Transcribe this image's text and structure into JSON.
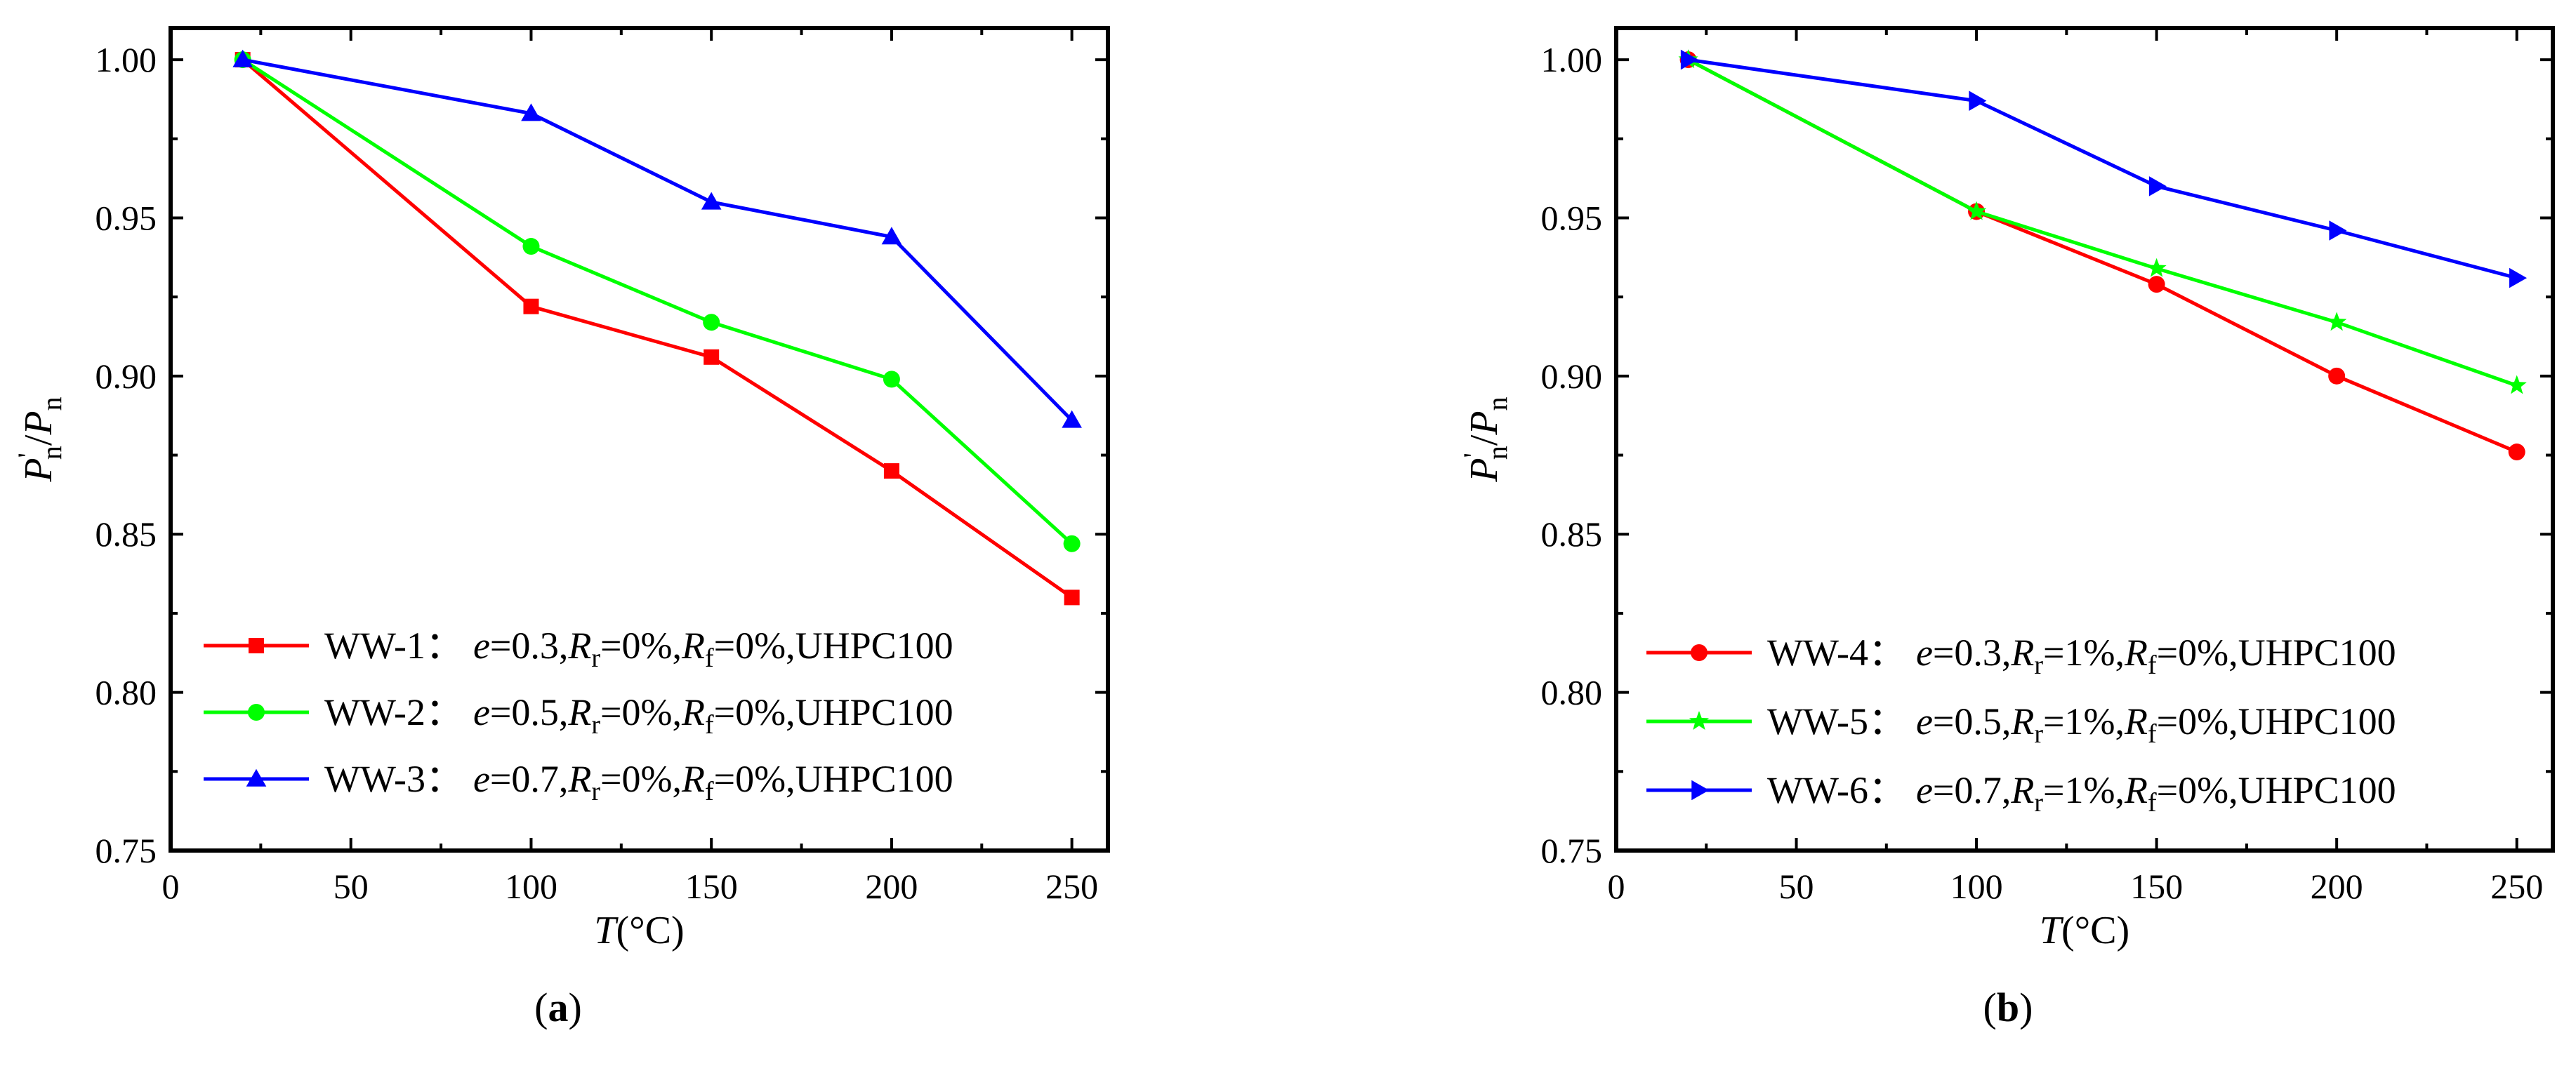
{
  "figure": {
    "panels": [
      "(a)",
      "(b)"
    ]
  },
  "chart_data": [
    {
      "type": "line",
      "panel_label": {
        "open": "(",
        "letter": "a",
        "close": ")"
      },
      "xlabel": {
        "var": "T",
        "unit": "(°C)"
      },
      "ylabel": {
        "main": "P",
        "prime": "'",
        "sub": "n",
        "slash": "/",
        "main2": "P",
        "sub2": "n"
      },
      "xlim": [
        0,
        260
      ],
      "ylim": [
        0.75,
        1.01
      ],
      "xticks": [
        0,
        50,
        100,
        150,
        200,
        250
      ],
      "xtick_labels": [
        "0",
        "50",
        "100",
        "150",
        "200",
        "250"
      ],
      "yticks": [
        0.75,
        0.8,
        0.85,
        0.9,
        0.95,
        1.0
      ],
      "ytick_labels": [
        "0.75",
        "0.80",
        "0.85",
        "0.90",
        "0.95",
        "1.00"
      ],
      "legend_position": "bottom-left",
      "x": [
        20,
        100,
        150,
        200,
        250
      ],
      "series": [
        {
          "name": "WW-1",
          "color": "#ff0000",
          "marker": "square",
          "values": [
            1.0,
            0.922,
            0.906,
            0.87,
            0.83
          ],
          "legend": {
            "name": "WW-1：",
            "e": "e",
            "e_val": "=0.3,",
            "rr": "R",
            "rr_sub": "r",
            "rr_val": "=0%,",
            "rf": "R",
            "rf_sub": "f",
            "rf_val": "=0%,UHPC100"
          }
        },
        {
          "name": "WW-2",
          "color": "#00ff00",
          "marker": "circle",
          "values": [
            1.0,
            0.941,
            0.917,
            0.899,
            0.847
          ],
          "legend": {
            "name": "WW-2：",
            "e": "e",
            "e_val": "=0.5,",
            "rr": "R",
            "rr_sub": "r",
            "rr_val": "=0%,",
            "rf": "R",
            "rf_sub": "f",
            "rf_val": "=0%,UHPC100"
          }
        },
        {
          "name": "WW-3",
          "color": "#0000ff",
          "marker": "triangle-up",
          "values": [
            1.0,
            0.983,
            0.955,
            0.944,
            0.886
          ],
          "legend": {
            "name": "WW-3：",
            "e": "e",
            "e_val": "=0.7,",
            "rr": "R",
            "rr_sub": "r",
            "rr_val": "=0%,",
            "rf": "R",
            "rf_sub": "f",
            "rf_val": "=0%,UHPC100"
          }
        }
      ]
    },
    {
      "type": "line",
      "panel_label": {
        "open": "(",
        "letter": "b",
        "close": ")"
      },
      "xlabel": {
        "var": "T",
        "unit": "(°C)"
      },
      "ylabel": {
        "main": "P",
        "prime": "'",
        "sub": "n",
        "slash": "/",
        "main2": "P",
        "sub2": "n"
      },
      "xlim": [
        0,
        260
      ],
      "ylim": [
        0.75,
        1.01
      ],
      "xticks": [
        0,
        50,
        100,
        150,
        200,
        250
      ],
      "xtick_labels": [
        "0",
        "50",
        "100",
        "150",
        "200",
        "250"
      ],
      "yticks": [
        0.75,
        0.8,
        0.85,
        0.9,
        0.95,
        1.0
      ],
      "ytick_labels": [
        "0.75",
        "0.80",
        "0.85",
        "0.90",
        "0.95",
        "1.00"
      ],
      "legend_position": "bottom-left",
      "x": [
        20,
        100,
        150,
        200,
        250
      ],
      "series": [
        {
          "name": "WW-4",
          "color": "#ff0000",
          "marker": "circle",
          "values": [
            1.0,
            0.952,
            0.929,
            0.9,
            0.876
          ],
          "legend": {
            "name": "WW-4：",
            "e": "e",
            "e_val": "=0.3,",
            "rr": "R",
            "rr_sub": "r",
            "rr_val": "=1%,",
            "rf": "R",
            "rf_sub": "f",
            "rf_val": "=0%,UHPC100"
          }
        },
        {
          "name": "WW-5",
          "color": "#00ff00",
          "marker": "star",
          "values": [
            1.0,
            0.952,
            0.934,
            0.917,
            0.897
          ],
          "legend": {
            "name": "WW-5：",
            "e": "e",
            "e_val": "=0.5,",
            "rr": "R",
            "rr_sub": "r",
            "rr_val": "=1%,",
            "rf": "R",
            "rf_sub": "f",
            "rf_val": "=0%,UHPC100"
          }
        },
        {
          "name": "WW-6",
          "color": "#0000ff",
          "marker": "triangle-right",
          "values": [
            1.0,
            0.987,
            0.96,
            0.946,
            0.931
          ],
          "legend": {
            "name": "WW-6：",
            "e": "e",
            "e_val": "=0.7,",
            "rr": "R",
            "rr_sub": "r",
            "rr_val": "=1%,",
            "rf": "R",
            "rf_sub": "f",
            "rf_val": "=0%,UHPC100"
          }
        }
      ]
    }
  ]
}
